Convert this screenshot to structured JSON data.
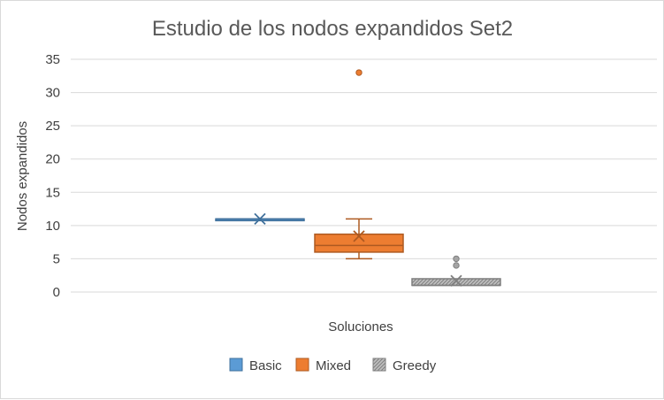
{
  "chart_data": {
    "type": "box",
    "title": "Estudio de los nodos expandidos Set2",
    "xlabel": "Soluciones",
    "ylabel": "Nodos expandidos",
    "ylim": [
      0,
      35
    ],
    "yticks": [
      0,
      5,
      10,
      15,
      20,
      25,
      30,
      35
    ],
    "grid": true,
    "legend_position": "bottom",
    "series": [
      {
        "name": "Basic",
        "color": "#5b9bd5",
        "stroke": "#41719c",
        "pattern": "solid",
        "min": 11,
        "q1": 11,
        "median": 11,
        "q3": 11,
        "max": 11,
        "mean": 11,
        "outliers": []
      },
      {
        "name": "Mixed",
        "color": "#ed7d31",
        "stroke": "#ae5a21",
        "pattern": "solid",
        "min": 5,
        "q1": 6,
        "median": 7,
        "q3": 8.7,
        "max": 11,
        "mean": 8.4,
        "outliers": [
          33
        ]
      },
      {
        "name": "Greedy",
        "color": "#a5a5a5",
        "stroke": "#7f7f7f",
        "pattern": "hatched",
        "min": 1,
        "q1": 1,
        "median": 1,
        "q3": 2,
        "max": 2,
        "mean": 1.7,
        "outliers": [
          4,
          5
        ]
      }
    ]
  }
}
